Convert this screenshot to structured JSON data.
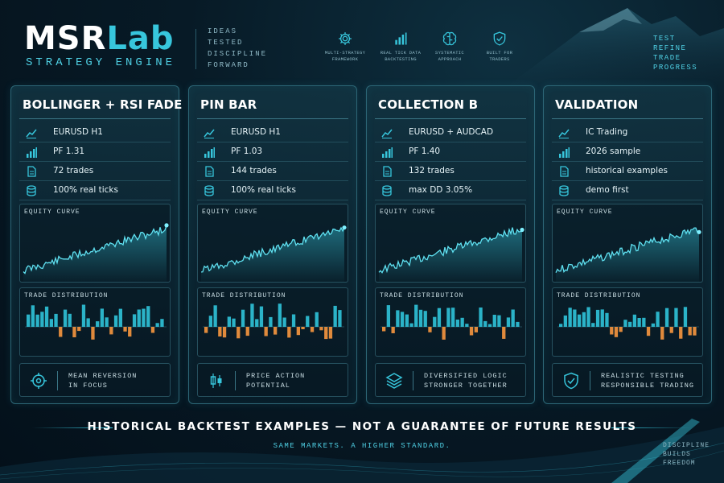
{
  "brand": {
    "name_part1": "MSR",
    "name_part2": "Lab",
    "subtitle": "STRATEGY ENGINE",
    "tagline": [
      "IDEAS",
      "TESTED",
      "DISCIPLINE",
      "FORWARD"
    ]
  },
  "features": [
    {
      "icon": "gear-icon",
      "line1": "MULTI-STRATEGY",
      "line2": "FRAMEWORK"
    },
    {
      "icon": "bar-chart-icon",
      "line1": "REAL TICK DATA",
      "line2": "BACKTESTING"
    },
    {
      "icon": "brain-icon",
      "line1": "SYSTEMATIC",
      "line2": "APPROACH"
    },
    {
      "icon": "shield-check-icon",
      "line1": "BUILT FOR",
      "line2": "TRADERS"
    }
  ],
  "right_tagline": [
    "TEST",
    "REFINE",
    "TRADE",
    "PROGRESS"
  ],
  "cards": [
    {
      "title": "BOLLINGER + RSI FADE",
      "stats": [
        {
          "icon": "trend-icon",
          "text": "EURUSD H1"
        },
        {
          "icon": "bar-chart-icon",
          "text": "PF 1.31"
        },
        {
          "icon": "document-icon",
          "text": "72 trades"
        },
        {
          "icon": "database-icon",
          "text": "100% real ticks"
        }
      ],
      "equity_label": "EQUITY CURVE",
      "dist_label": "TRADE DISTRIBUTION",
      "footer_icon": "target-icon",
      "footer_line1": "MEAN REVERSION",
      "footer_line2": "IN FOCUS"
    },
    {
      "title": "PIN BAR",
      "stats": [
        {
          "icon": "trend-icon",
          "text": "EURUSD H1"
        },
        {
          "icon": "bar-chart-icon",
          "text": "PF 1.03"
        },
        {
          "icon": "document-icon",
          "text": "144 trades"
        },
        {
          "icon": "database-icon",
          "text": "100% real ticks"
        }
      ],
      "equity_label": "EQUITY CURVE",
      "dist_label": "TRADE DISTRIBUTION",
      "footer_icon": "candlestick-icon",
      "footer_line1": "PRICE ACTION",
      "footer_line2": "POTENTIAL"
    },
    {
      "title": "COLLECTION B",
      "stats": [
        {
          "icon": "trend-icon",
          "text": "EURUSD + AUDCAD"
        },
        {
          "icon": "bar-chart-icon",
          "text": "PF 1.40"
        },
        {
          "icon": "document-icon",
          "text": "132 trades"
        },
        {
          "icon": "database-icon",
          "text": "max DD 3.05%"
        }
      ],
      "equity_label": "EQUITY CURVE",
      "dist_label": "TRADE DISTRIBUTION",
      "footer_icon": "layers-icon",
      "footer_line1": "DIVERSIFIED LOGIC",
      "footer_line2": "STRONGER TOGETHER"
    },
    {
      "title": "VALIDATION",
      "stats": [
        {
          "icon": "trend-icon",
          "text": "IC Trading"
        },
        {
          "icon": "bar-chart-icon",
          "text": "2026 sample"
        },
        {
          "icon": "document-icon",
          "text": "historical examples"
        },
        {
          "icon": "database-icon",
          "text": "demo first"
        }
      ],
      "equity_label": "EQUITY CURVE",
      "dist_label": "TRADE DISTRIBUTION",
      "footer_icon": "shield-check-icon",
      "footer_line1": "REALISTIC TESTING",
      "footer_line2": "RESPONSIBLE TRADING"
    }
  ],
  "disclaimer": "HISTORICAL BACKTEST EXAMPLES — NOT A GUARANTEE OF FUTURE RESULTS",
  "sub_disclaimer": "SAME MARKETS. A HIGHER STANDARD.",
  "corner_tag": [
    "DISCIPLINE",
    "BUILDS",
    "FREEDOM"
  ],
  "colors": {
    "accent": "#37c6dc",
    "positive_bar": "#2bb3c8",
    "negative_bar": "#e08a3c",
    "background": "#071a26"
  }
}
